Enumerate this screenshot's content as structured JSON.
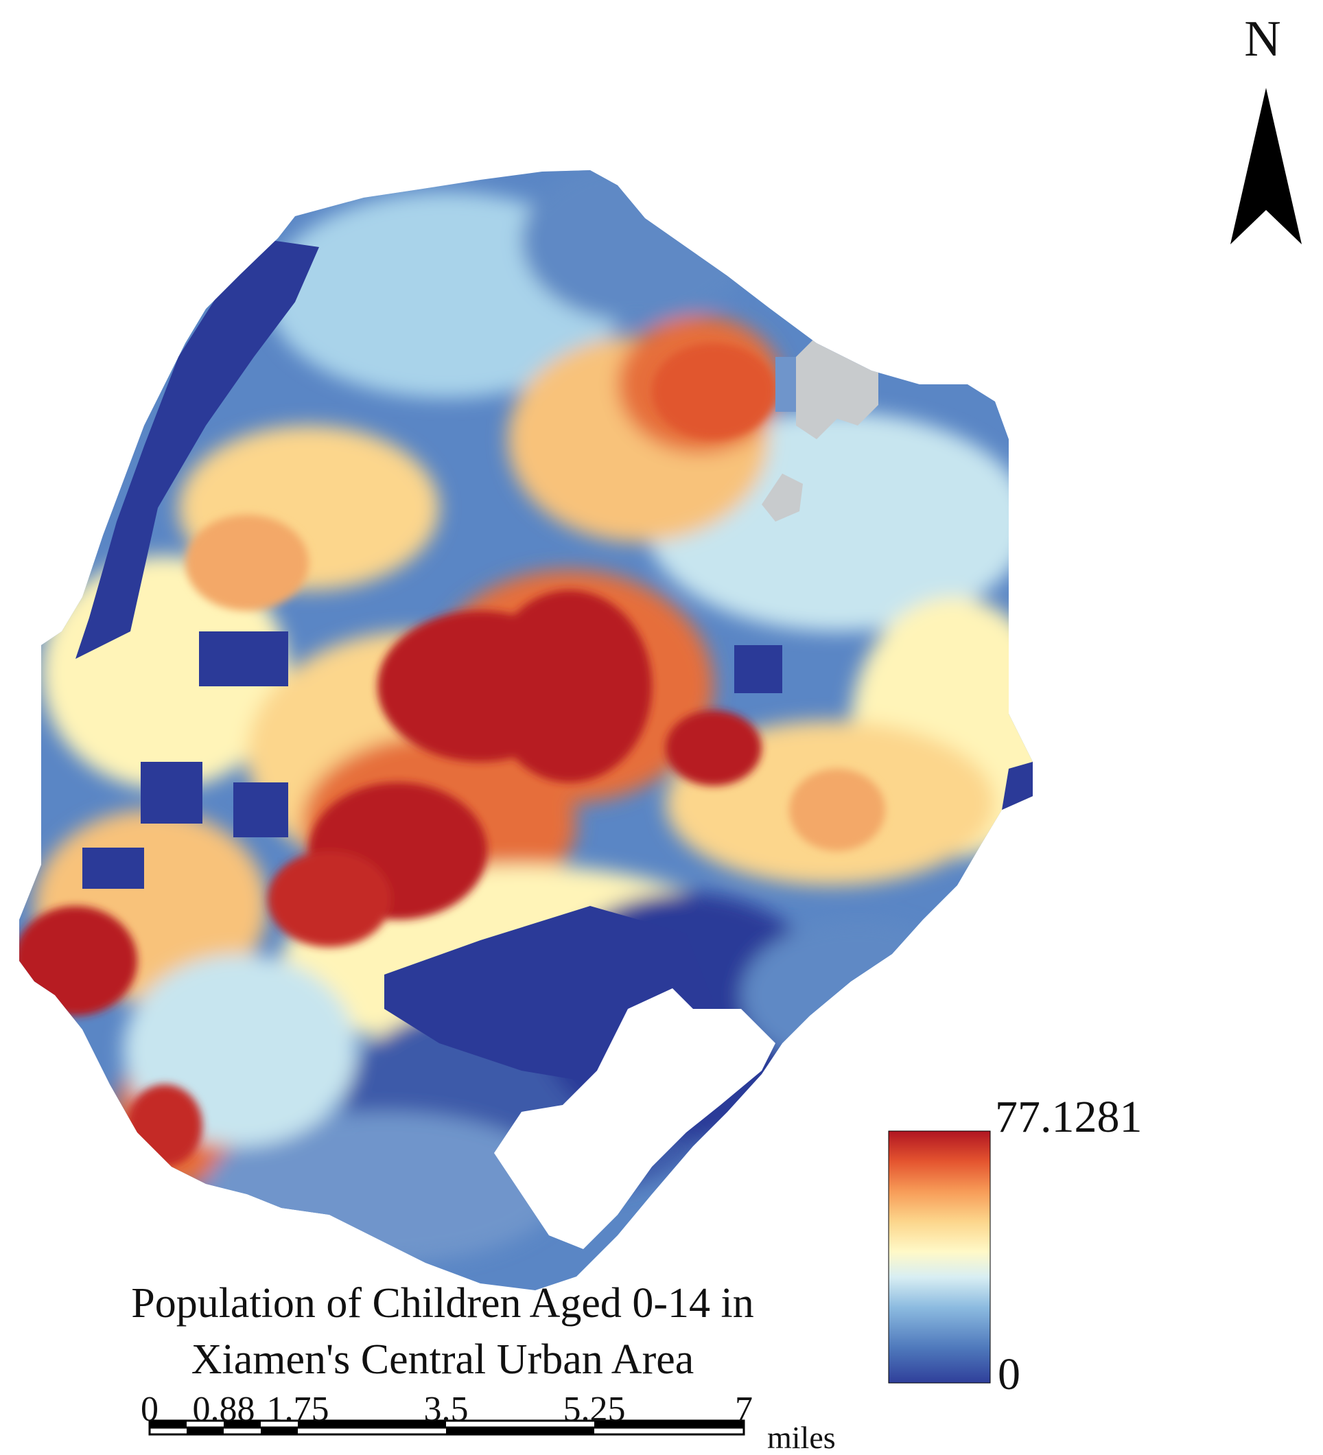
{
  "map": {
    "title_line_1": "Population of Children Aged 0-14 in",
    "title_line_2": "Xiamen's Central Urban Area",
    "north_label": "N"
  },
  "legend": {
    "max_label": "77.1281",
    "min_label": "0",
    "colors": [
      "#2f3f9a",
      "#4f79bc",
      "#8cbbe0",
      "#d8eef3",
      "#fff9c8",
      "#fcd68c",
      "#f79c58",
      "#e4542f",
      "#b01522"
    ]
  },
  "scale_bar": {
    "ticks": [
      "0",
      "0.88",
      "1.75",
      "3.5",
      "5.25",
      "7"
    ],
    "unit": "miles"
  },
  "palette": {
    "very_low": "#2b3a98",
    "low": "#5e89c5",
    "mid_low": "#c7e5ef",
    "mid": "#fff4b8",
    "mid_high": "#f8c27a",
    "high": "#e66e3b",
    "very_high": "#b71b24",
    "water_gray": "#c8cbcd"
  }
}
